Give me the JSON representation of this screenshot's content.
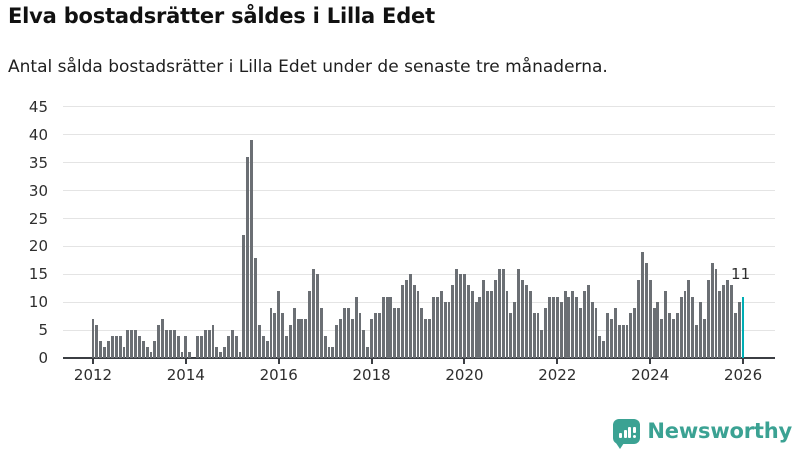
{
  "header": {
    "title": "Elva bostadsrätter såldes i Lilla Edet",
    "subtitle": "Antal sålda bostadsrätter i Lilla Edet under de senaste tre månaderna."
  },
  "chart_data": {
    "type": "bar",
    "title": "Elva bostadsrätter såldes i Lilla Edet",
    "subtitle": "Antal sålda bostadsrätter i Lilla Edet under de senaste tre månaderna.",
    "x_unit": "month",
    "x_start": "2012-01",
    "x_end": "2026-01",
    "values": [
      7,
      6,
      3,
      2,
      3,
      4,
      4,
      4,
      2,
      5,
      5,
      5,
      4,
      3,
      2,
      1,
      3,
      6,
      7,
      5,
      5,
      5,
      4,
      1,
      4,
      1,
      0,
      4,
      4,
      5,
      5,
      6,
      2,
      1,
      2,
      4,
      5,
      4,
      1,
      22,
      36,
      39,
      18,
      6,
      4,
      3,
      9,
      8,
      12,
      8,
      4,
      6,
      9,
      7,
      7,
      7,
      12,
      16,
      15,
      9,
      4,
      2,
      2,
      6,
      7,
      9,
      9,
      7,
      11,
      8,
      5,
      2,
      7,
      8,
      8,
      11,
      11,
      11,
      9,
      9,
      13,
      14,
      15,
      13,
      12,
      9,
      7,
      7,
      11,
      11,
      12,
      10,
      10,
      13,
      16,
      15,
      15,
      13,
      12,
      10,
      11,
      14,
      12,
      12,
      14,
      16,
      16,
      12,
      8,
      10,
      16,
      14,
      13,
      12,
      8,
      8,
      5,
      9,
      11,
      11,
      11,
      10,
      12,
      11,
      12,
      11,
      9,
      12,
      13,
      10,
      9,
      4,
      3,
      8,
      7,
      9,
      6,
      6,
      6,
      8,
      9,
      14,
      19,
      17,
      14,
      9,
      10,
      7,
      12,
      8,
      7,
      8,
      11,
      12,
      14,
      11,
      6,
      10,
      7,
      14,
      17,
      16,
      12,
      13,
      14,
      13,
      8,
      10,
      11
    ],
    "ylim": [
      0,
      45
    ],
    "yticks": [
      0,
      5,
      10,
      15,
      20,
      25,
      30,
      35,
      40,
      45
    ],
    "xticks": [
      "2012",
      "2014",
      "2016",
      "2018",
      "2020",
      "2022",
      "2024",
      "2026"
    ],
    "grid": true,
    "bar_color": "#6b6f74",
    "highlight": {
      "index": 168,
      "value": 11,
      "label": "11",
      "color": "#00adb4"
    }
  },
  "branding": {
    "logo_text": "Newsworthy",
    "color": "#3ba293"
  }
}
